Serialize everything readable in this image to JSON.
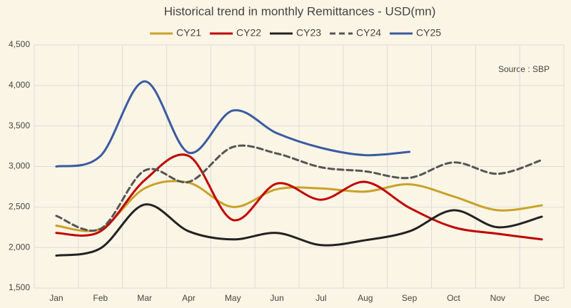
{
  "chart_data": {
    "type": "line",
    "title": "Historical trend  in monthly Remittances - USD(mn)",
    "annotation": "Source : SBP",
    "categories": [
      "Jan",
      "Feb",
      "Mar",
      "Apr",
      "May",
      "Jun",
      "Jul",
      "Aug",
      "Sep",
      "Oct",
      "Nov",
      "Dec"
    ],
    "series": [
      {
        "name": "CY21",
        "color": "#c9a227",
        "linestyle": "solid",
        "values": [
          2270,
          2230,
          2730,
          2800,
          2500,
          2720,
          2730,
          2690,
          2780,
          2630,
          2460,
          2520
        ]
      },
      {
        "name": "CY22",
        "color": "#c00000",
        "linestyle": "solid",
        "values": [
          2180,
          2200,
          2830,
          3130,
          2340,
          2790,
          2590,
          2810,
          2490,
          2250,
          2170,
          2100
        ]
      },
      {
        "name": "CY23",
        "color": "#222222",
        "linestyle": "solid",
        "values": [
          1900,
          1990,
          2530,
          2200,
          2100,
          2180,
          2030,
          2090,
          2200,
          2460,
          2250,
          2380
        ]
      },
      {
        "name": "CY24",
        "color": "#555555",
        "linestyle": "dashed",
        "values": [
          2390,
          2230,
          2950,
          2810,
          3240,
          3160,
          2990,
          2940,
          2860,
          3050,
          2910,
          3080
        ]
      },
      {
        "name": "CY25",
        "color": "#3a5ba0",
        "linestyle": "solid",
        "values": [
          3000,
          3130,
          4050,
          3170,
          3690,
          3410,
          3230,
          3140,
          3180,
          null,
          null,
          null
        ]
      }
    ],
    "ylim": [
      1500,
      4500
    ],
    "yticks": [
      {
        "value": 1500,
        "label": "1,500"
      },
      {
        "value": 2000,
        "label": "2,000"
      },
      {
        "value": 2500,
        "label": "2,500"
      },
      {
        "value": 3000,
        "label": "3,000"
      },
      {
        "value": 3500,
        "label": "3,500"
      },
      {
        "value": 4000,
        "label": "4,000"
      },
      {
        "value": 4500,
        "label": "4,500"
      }
    ],
    "grid": true,
    "legend": "top"
  }
}
